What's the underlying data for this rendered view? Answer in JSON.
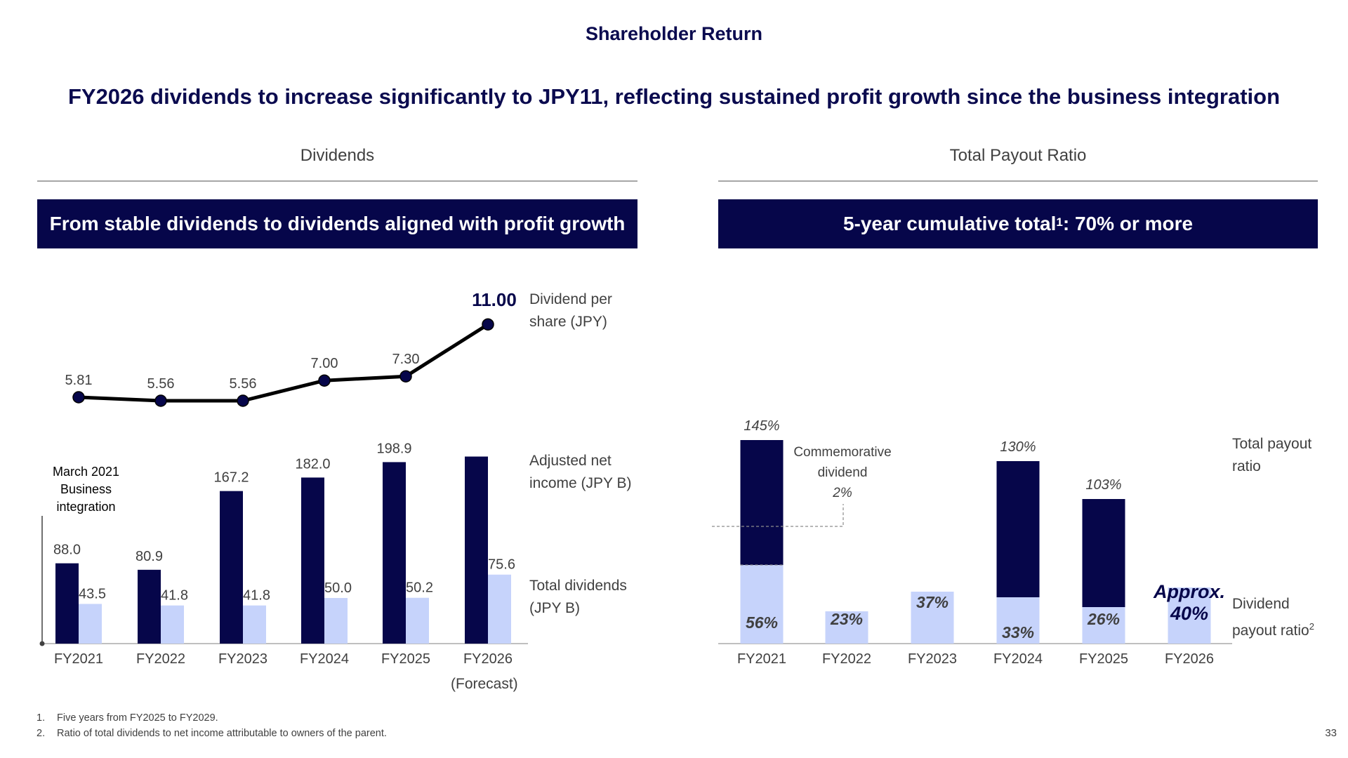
{
  "header": {
    "slide_title": "Shareholder Return",
    "headline": "FY2026 dividends to increase significantly to JPY11, reflecting sustained profit growth since the business integration"
  },
  "left_section": {
    "title": "Dividends",
    "banner": "From stable dividends to dividends aligned with profit growth",
    "legend": {
      "dps_line1": "Dividend per",
      "dps_line2": "share (JPY)",
      "ani_line1": "Adjusted net",
      "ani_line2": "income (JPY B)",
      "td_line1": "Total dividends",
      "td_line2": "(JPY B)"
    },
    "annotation": {
      "line1": "March 2021",
      "line2": "Business",
      "line3": "integration"
    },
    "forecast_note": "(Forecast)"
  },
  "right_section": {
    "title": "Total Payout Ratio",
    "banner_pre": "5-year cumulative total",
    "banner_sup": "1",
    "banner_post": ": 70% or more",
    "legend": {
      "tpr_line1": "Total payout",
      "tpr_line2": "ratio",
      "dpr_line1": "Dividend",
      "dpr_line2": "payout ratio",
      "dpr_sup": "2"
    },
    "annotation": {
      "line1": "Commemorative",
      "line2": "dividend",
      "line3": "2%"
    },
    "approx_line1": "Approx.",
    "approx_line2": "40%"
  },
  "colors": {
    "navy": "#06064a",
    "light_blue": "#c6d3fb",
    "line": "#000000",
    "text": "#404040"
  },
  "chart_data": [
    {
      "type": "bar",
      "categories": [
        "FY2021",
        "FY2022",
        "FY2023",
        "FY2024",
        "FY2025",
        "FY2026"
      ],
      "series": [
        {
          "name": "Adjusted net income (JPY B)",
          "values": [
            88.0,
            80.9,
            167.2,
            182.0,
            198.9,
            205
          ],
          "labels": [
            "88.0",
            "80.9",
            "167.2",
            "182.0",
            "198.9",
            ""
          ]
        },
        {
          "name": "Total dividends (JPY B)",
          "values": [
            43.5,
            41.8,
            41.8,
            50.0,
            50.2,
            75.6
          ],
          "labels": [
            "43.5",
            "41.8",
            "41.8",
            "50.0",
            "50.2",
            "75.6"
          ]
        },
        {
          "name": "Dividend per share (JPY)",
          "type": "line",
          "values": [
            5.81,
            5.56,
            5.56,
            7.0,
            7.3,
            11.0
          ],
          "labels": [
            "5.81",
            "5.56",
            "5.56",
            "7.00",
            "7.30",
            "11.00"
          ]
        }
      ]
    },
    {
      "type": "bar",
      "categories": [
        "FY2021",
        "FY2022",
        "FY2023",
        "FY2024",
        "FY2025",
        "FY2026"
      ],
      "series": [
        {
          "name": "Dividend payout ratio",
          "values": [
            56,
            23,
            37,
            33,
            26,
            40
          ],
          "labels": [
            "56%",
            "23%",
            "37%",
            "33%",
            "26%",
            ""
          ]
        },
        {
          "name": "Total payout ratio",
          "values": [
            145,
            null,
            null,
            130,
            103,
            null
          ],
          "labels": [
            "145%",
            "",
            "",
            "130%",
            "103%",
            ""
          ]
        }
      ]
    }
  ],
  "footnotes": [
    {
      "num": "1.",
      "text": "Five years from FY2025 to FY2029."
    },
    {
      "num": "2.",
      "text": "Ratio of total dividends to net income attributable to owners of the parent."
    }
  ],
  "page_number": "33"
}
